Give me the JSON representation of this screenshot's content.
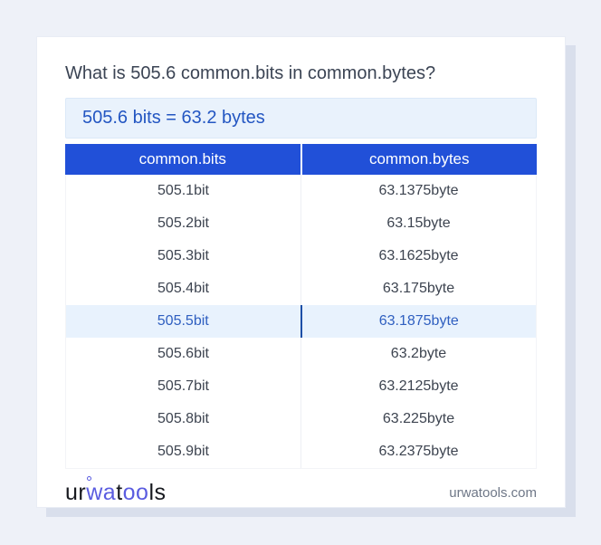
{
  "card": {
    "title": "What is 505.6 common.bits in common.bytes?",
    "answer": "505.6 bits = 63.2 bytes"
  },
  "table": {
    "headers": [
      "common.bits",
      "common.bytes"
    ],
    "rows": [
      {
        "bits": "505.1bit",
        "bytes": "63.1375byte",
        "highlighted": false
      },
      {
        "bits": "505.2bit",
        "bytes": "63.15byte",
        "highlighted": false
      },
      {
        "bits": "505.3bit",
        "bytes": "63.1625byte",
        "highlighted": false
      },
      {
        "bits": "505.4bit",
        "bytes": "63.175byte",
        "highlighted": false
      },
      {
        "bits": "505.5bit",
        "bytes": "63.1875byte",
        "highlighted": true
      },
      {
        "bits": "505.6bit",
        "bytes": "63.2byte",
        "highlighted": false
      },
      {
        "bits": "505.7bit",
        "bytes": "63.2125byte",
        "highlighted": false
      },
      {
        "bits": "505.8bit",
        "bytes": "63.225byte",
        "highlighted": false
      },
      {
        "bits": "505.9bit",
        "bytes": "63.2375byte",
        "highlighted": false
      }
    ]
  },
  "footer": {
    "logo": {
      "part1": "ur",
      "part2": "wa",
      "part3": "t",
      "part4": "oo",
      "part5": "ls"
    },
    "domain": "urwatools.com"
  },
  "colors": {
    "page_background": "#eef1f8",
    "card_background": "#ffffff",
    "card_shadow": "#d9dfec",
    "header_blue": "#2150d8",
    "answer_background": "#e9f2fc",
    "answer_text": "#2356c2",
    "highlight_row_background": "#e8f2fd",
    "highlight_row_text": "#2f5fc0",
    "highlight_divider": "#1d4fa6",
    "body_text": "#3d4450",
    "logo_accent": "#5a5ce0",
    "domain_text": "#6e7787"
  }
}
